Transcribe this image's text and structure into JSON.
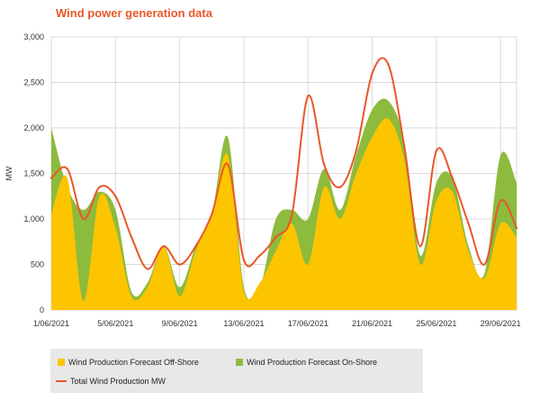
{
  "chart_data": {
    "type": "area",
    "title": "Wind power generation data",
    "xlabel": "",
    "ylabel": "MW",
    "ylim": [
      0,
      3000
    ],
    "yticks": [
      0,
      500,
      1000,
      1500,
      2000,
      2500,
      3000
    ],
    "ytick_labels": [
      "0",
      "500",
      "1,000",
      "1,500",
      "2,000",
      "2,500",
      "3,000"
    ],
    "xlim": [
      "2021-06-01",
      "2021-06-30"
    ],
    "xtick_labels": [
      "1/06/2021",
      "5/06/2021",
      "9/06/2021",
      "13/06/2021",
      "17/06/2021",
      "21/06/2021",
      "25/06/2021",
      "29/06/2021"
    ],
    "grid": true,
    "legend_position": "bottom",
    "x": [
      "2021-06-01",
      "2021-06-02",
      "2021-06-03",
      "2021-06-04",
      "2021-06-05",
      "2021-06-06",
      "2021-06-07",
      "2021-06-08",
      "2021-06-09",
      "2021-06-10",
      "2021-06-11",
      "2021-06-12",
      "2021-06-13",
      "2021-06-14",
      "2021-06-15",
      "2021-06-16",
      "2021-06-17",
      "2021-06-18",
      "2021-06-19",
      "2021-06-20",
      "2021-06-21",
      "2021-06-22",
      "2021-06-23",
      "2021-06-24",
      "2021-06-25",
      "2021-06-26",
      "2021-06-27",
      "2021-06-28",
      "2021-06-29",
      "2021-06-30"
    ],
    "series": [
      {
        "name": "Wind Production Forecast Off-Shore",
        "color": "#fdc400",
        "values": [
          1050,
          1450,
          100,
          1250,
          900,
          150,
          250,
          700,
          150,
          650,
          1050,
          1700,
          200,
          300,
          650,
          950,
          500,
          1350,
          1000,
          1500,
          1900,
          2100,
          1650,
          500,
          1200,
          1300,
          650,
          350,
          950,
          800
        ]
      },
      {
        "name": "Wind Production Forecast On-Shore",
        "color": "#8dbb3d",
        "values": [
          2000,
          1350,
          1100,
          1300,
          1100,
          200,
          300,
          700,
          250,
          700,
          1050,
          1900,
          250,
          250,
          1000,
          1100,
          1000,
          1550,
          1100,
          1700,
          2200,
          2300,
          1850,
          600,
          1400,
          1450,
          700,
          400,
          1700,
          1400
        ]
      },
      {
        "name": "Total Wind Production MW",
        "color": "#e8582a",
        "values": [
          1450,
          1550,
          1000,
          1350,
          1250,
          800,
          450,
          700,
          500,
          700,
          1050,
          1600,
          550,
          600,
          800,
          1050,
          2350,
          1600,
          1350,
          1750,
          2600,
          2700,
          1800,
          700,
          1750,
          1450,
          950,
          500,
          1200,
          900
        ]
      }
    ]
  }
}
